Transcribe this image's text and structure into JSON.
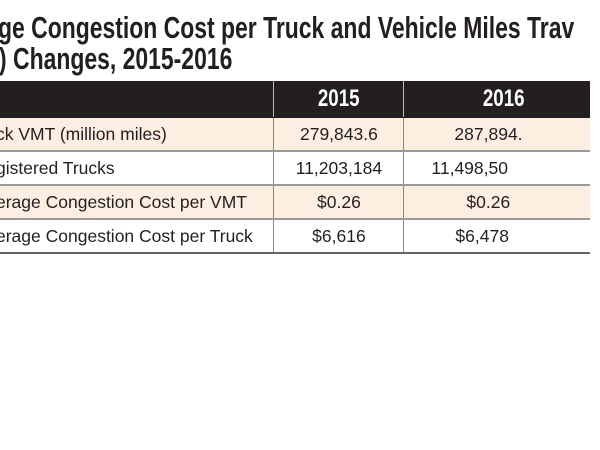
{
  "title": {
    "line1": "ge Congestion Cost per Truck and Vehicle Miles Trav",
    "line2": ") Changes, 2015-2016"
  },
  "table": {
    "columns": [
      "",
      "2015",
      "2016"
    ],
    "rows": [
      {
        "label": "ck VMT (million miles)",
        "y2015": "279,843.6",
        "y2016": "287,894."
      },
      {
        "label": "gistered Trucks",
        "y2015": "11,203,184",
        "y2016": "11,498,50"
      },
      {
        "label": "erage Congestion Cost per VMT",
        "y2015": "$0.26",
        "y2016": "$0.26"
      },
      {
        "label": "erage Congestion Cost per Truck",
        "y2015": "$6,616",
        "y2016": "$6,478"
      }
    ]
  },
  "colors": {
    "header_bg": "#231f20",
    "row_tint": "#fcefe2"
  }
}
